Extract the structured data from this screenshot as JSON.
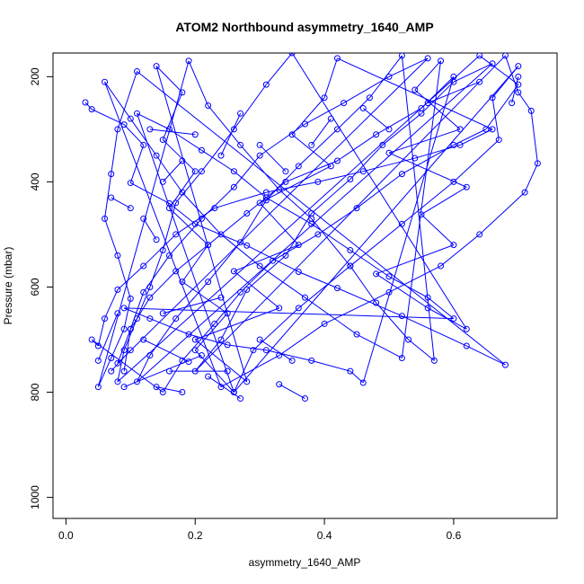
{
  "chart_data": {
    "type": "scatter",
    "title": "ATOM2 Northbound asymmetry_1640_AMP",
    "xlabel": "asymmetry_1640_AMP",
    "ylabel": "Pressure (mbar)",
    "xlim": [
      -0.02,
      0.76
    ],
    "ylim": [
      1040,
      155
    ],
    "y_reversed": true,
    "x_ticks": [
      "0.0",
      "0.2",
      "0.4",
      "0.6"
    ],
    "y_ticks": [
      "200",
      "400",
      "600",
      "800",
      "1000"
    ],
    "grid": false,
    "series_color": "#0000ff",
    "series": [
      {
        "style": "points-and-lines",
        "points": [
          [
            0.03,
            249
          ],
          [
            0.04,
            262
          ],
          [
            0.09,
            291
          ],
          [
            0.12,
            330
          ],
          [
            0.1,
            402
          ],
          [
            0.16,
            441
          ],
          [
            0.2,
            480
          ],
          [
            0.28,
            521
          ],
          [
            0.36,
            571
          ],
          [
            0.42,
            602
          ],
          [
            0.52,
            655
          ],
          [
            0.62,
            712
          ],
          [
            0.68,
            748
          ],
          [
            0.11,
            190
          ],
          [
            0.08,
            300
          ],
          [
            0.07,
            385
          ],
          [
            0.06,
            470
          ],
          [
            0.08,
            540
          ],
          [
            0.1,
            622
          ],
          [
            0.09,
            680
          ],
          [
            0.07,
            735
          ],
          [
            0.05,
            790
          ],
          [
            0.19,
            170
          ],
          [
            0.22,
            255
          ],
          [
            0.27,
            330
          ],
          [
            0.33,
            415
          ],
          [
            0.38,
            470
          ],
          [
            0.44,
            560
          ],
          [
            0.48,
            630
          ],
          [
            0.53,
            700
          ],
          [
            0.57,
            740
          ],
          [
            0.52,
            160
          ],
          [
            0.47,
            240
          ],
          [
            0.42,
            300
          ],
          [
            0.36,
            370
          ],
          [
            0.31,
            435
          ],
          [
            0.27,
            515
          ],
          [
            0.22,
            590
          ],
          [
            0.17,
            660
          ],
          [
            0.13,
            730
          ],
          [
            0.11,
            780
          ],
          [
            0.66,
            175
          ],
          [
            0.6,
            210
          ],
          [
            0.55,
            270
          ],
          [
            0.49,
            330
          ],
          [
            0.44,
            395
          ],
          [
            0.38,
            460
          ],
          [
            0.34,
            540
          ],
          [
            0.28,
            605
          ],
          [
            0.24,
            700
          ],
          [
            0.2,
            760
          ],
          [
            0.68,
            160
          ],
          [
            0.7,
            230
          ],
          [
            0.72,
            265
          ],
          [
            0.73,
            365
          ],
          [
            0.71,
            420
          ],
          [
            0.64,
            500
          ],
          [
            0.58,
            560
          ],
          [
            0.5,
            610
          ],
          [
            0.4,
            670
          ],
          [
            0.33,
            730
          ],
          [
            0.24,
            790
          ],
          [
            0.06,
            210
          ],
          [
            0.1,
            280
          ],
          [
            0.14,
            350
          ],
          [
            0.18,
            420
          ],
          [
            0.24,
            500
          ],
          [
            0.3,
            560
          ],
          [
            0.37,
            620
          ],
          [
            0.45,
            690
          ],
          [
            0.52,
            735
          ],
          [
            0.58,
            170
          ],
          [
            0.54,
            225
          ],
          [
            0.61,
            300
          ],
          [
            0.5,
            345
          ],
          [
            0.62,
            410
          ],
          [
            0.55,
            462
          ],
          [
            0.6,
            520
          ],
          [
            0.48,
            575
          ],
          [
            0.56,
            640
          ],
          [
            0.62,
            680
          ],
          [
            0.35,
            155
          ],
          [
            0.31,
            215
          ],
          [
            0.26,
            300
          ],
          [
            0.21,
            380
          ],
          [
            0.17,
            440
          ],
          [
            0.15,
            530
          ],
          [
            0.13,
            600
          ],
          [
            0.11,
            660
          ],
          [
            0.09,
            720
          ],
          [
            0.08,
            780
          ],
          [
            0.64,
            160
          ],
          [
            0.7,
            215
          ],
          [
            0.65,
            300
          ],
          [
            0.6,
            330
          ],
          [
            0.52,
            385
          ],
          [
            0.45,
            450
          ],
          [
            0.39,
            500
          ],
          [
            0.32,
            550
          ],
          [
            0.27,
            610
          ],
          [
            0.23,
            670
          ],
          [
            0.18,
            740
          ],
          [
            0.15,
            800
          ],
          [
            0.04,
            700
          ],
          [
            0.05,
            712
          ],
          [
            0.06,
            660
          ],
          [
            0.08,
            605
          ],
          [
            0.12,
            560
          ],
          [
            0.17,
            500
          ],
          [
            0.23,
            450
          ],
          [
            0.31,
            420
          ],
          [
            0.39,
            400
          ],
          [
            0.46,
            380
          ],
          [
            0.54,
            355
          ],
          [
            0.61,
            330
          ],
          [
            0.66,
            300
          ],
          [
            0.42,
            165
          ],
          [
            0.4,
            240
          ],
          [
            0.35,
            310
          ],
          [
            0.41,
            370
          ],
          [
            0.3,
            440
          ],
          [
            0.36,
            520
          ],
          [
            0.26,
            570
          ],
          [
            0.33,
            640
          ],
          [
            0.2,
            700
          ],
          [
            0.28,
            780
          ],
          [
            0.14,
            180
          ],
          [
            0.18,
            230
          ],
          [
            0.15,
            320
          ],
          [
            0.2,
            380
          ],
          [
            0.16,
            450
          ],
          [
            0.22,
            520
          ],
          [
            0.18,
            590
          ],
          [
            0.25,
            650
          ],
          [
            0.2,
            720
          ],
          [
            0.26,
            800
          ],
          [
            0.7,
            180
          ],
          [
            0.66,
            240
          ],
          [
            0.67,
            320
          ],
          [
            0.6,
            400
          ],
          [
            0.52,
            480
          ],
          [
            0.44,
            560
          ],
          [
            0.36,
            640
          ],
          [
            0.29,
            720
          ],
          [
            0.26,
            800
          ],
          [
            0.11,
            270
          ],
          [
            0.16,
            300
          ],
          [
            0.21,
            340
          ],
          [
            0.26,
            380
          ],
          [
            0.31,
            430
          ],
          [
            0.38,
            480
          ],
          [
            0.44,
            530
          ],
          [
            0.5,
            580
          ],
          [
            0.56,
            620
          ],
          [
            0.6,
            660
          ],
          [
            0.09,
            640
          ],
          [
            0.13,
            660
          ],
          [
            0.19,
            690
          ],
          [
            0.25,
            710
          ],
          [
            0.31,
            720
          ],
          [
            0.38,
            740
          ],
          [
            0.44,
            760
          ],
          [
            0.46,
            782
          ],
          [
            0.6,
            200
          ],
          [
            0.55,
            260
          ],
          [
            0.48,
            310
          ],
          [
            0.42,
            360
          ],
          [
            0.34,
            400
          ],
          [
            0.28,
            460
          ],
          [
            0.22,
            520
          ],
          [
            0.17,
            570
          ],
          [
            0.13,
            620
          ],
          [
            0.1,
            680
          ],
          [
            0.08,
            745
          ],
          [
            0.56,
            165
          ],
          [
            0.5,
            200
          ],
          [
            0.43,
            250
          ],
          [
            0.37,
            290
          ],
          [
            0.3,
            350
          ],
          [
            0.26,
            410
          ],
          [
            0.21,
            470
          ],
          [
            0.16,
            540
          ],
          [
            0.12,
            610
          ],
          [
            0.1,
            680
          ],
          [
            0.09,
            760
          ]
        ]
      }
    ],
    "x_reference_points": [
      [
        0.07,
        760
      ],
      [
        0.1,
        720
      ],
      [
        0.14,
        790
      ],
      [
        0.18,
        800
      ],
      [
        0.22,
        770
      ],
      [
        0.27,
        812
      ],
      [
        0.37,
        812
      ],
      [
        0.33,
        785
      ],
      [
        0.19,
        742
      ],
      [
        0.12,
        700
      ],
      [
        0.05,
        740
      ],
      [
        0.08,
        650
      ],
      [
        0.15,
        650
      ],
      [
        0.24,
        620
      ],
      [
        0.3,
        700
      ],
      [
        0.35,
        740
      ],
      [
        0.25,
        760
      ],
      [
        0.16,
        760
      ],
      [
        0.21,
        730
      ],
      [
        0.09,
        790
      ],
      [
        0.12,
        470
      ],
      [
        0.14,
        510
      ],
      [
        0.07,
        430
      ],
      [
        0.1,
        450
      ],
      [
        0.15,
        400
      ],
      [
        0.18,
        360
      ],
      [
        0.13,
        300
      ],
      [
        0.2,
        310
      ],
      [
        0.24,
        350
      ],
      [
        0.27,
        270
      ],
      [
        0.3,
        330
      ],
      [
        0.34,
        380
      ],
      [
        0.38,
        330
      ],
      [
        0.41,
        280
      ],
      [
        0.46,
        260
      ],
      [
        0.5,
        300
      ],
      [
        0.56,
        250
      ],
      [
        0.64,
        210
      ],
      [
        0.69,
        250
      ],
      [
        0.7,
        200
      ]
    ]
  }
}
